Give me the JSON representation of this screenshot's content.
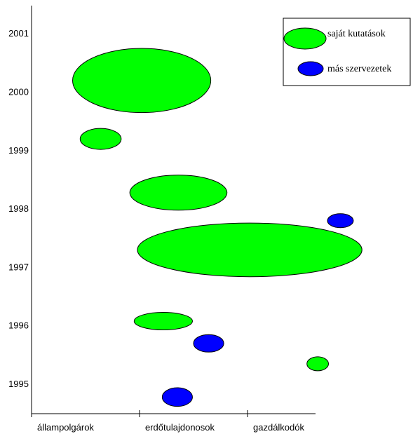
{
  "chart_data": {
    "type": "bubble",
    "title": "",
    "xlabel": "",
    "ylabel": "",
    "categories": [
      "állampolgárok",
      "erdőtulajdonosok",
      "gazdálkodók"
    ],
    "y_ticks": [
      "1995",
      "1996",
      "1997",
      "1998",
      "1999",
      "2000",
      "2001"
    ],
    "xlim": [
      0,
      3
    ],
    "ylim": [
      1994.45,
      2001.5
    ],
    "grid": false,
    "legend_position": "top-right",
    "series": [
      {
        "name": "saját kutatások",
        "color": "#00ff00",
        "points": [
          {
            "x": 1.02,
            "y": 2000.2,
            "rx": 0.64,
            "ry": 0.55
          },
          {
            "x": 0.64,
            "y": 1999.2,
            "rx": 0.19,
            "ry": 0.18
          },
          {
            "x": 1.36,
            "y": 1998.28,
            "rx": 0.45,
            "ry": 0.3
          },
          {
            "x": 2.02,
            "y": 1997.3,
            "rx": 1.04,
            "ry": 0.46
          },
          {
            "x": 1.22,
            "y": 1996.08,
            "rx": 0.27,
            "ry": 0.15
          },
          {
            "x": 2.65,
            "y": 1995.35,
            "rx": 0.1,
            "ry": 0.12
          }
        ]
      },
      {
        "name": "más szervezetek",
        "color": "#0000ff",
        "points": [
          {
            "x": 2.86,
            "y": 1997.8,
            "rx": 0.12,
            "ry": 0.12
          },
          {
            "x": 1.64,
            "y": 1995.7,
            "rx": 0.14,
            "ry": 0.15
          },
          {
            "x": 1.35,
            "y": 1994.78,
            "rx": 0.14,
            "ry": 0.16
          }
        ]
      }
    ]
  }
}
